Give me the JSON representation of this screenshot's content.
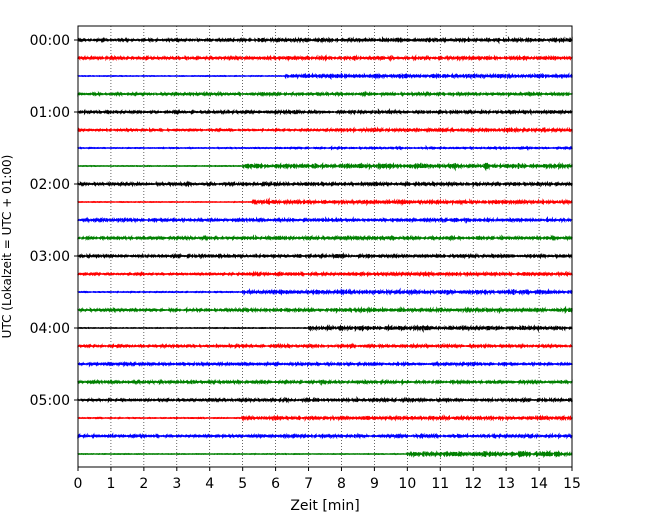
{
  "chart_data": {
    "type": "line",
    "title": "",
    "xlabel": "Zeit  [min]",
    "ylabel": "UTC (Lokalzeit = UTC + 01:00)",
    "xlim": [
      0,
      15
    ],
    "x_ticks": [
      0,
      1,
      2,
      3,
      4,
      5,
      6,
      7,
      8,
      9,
      10,
      11,
      12,
      13,
      14,
      15
    ],
    "y_tick_labels": [
      "00:00",
      "01:00",
      "02:00",
      "03:00",
      "04:00",
      "05:00"
    ],
    "grid": "vertical dotted lines at each minute",
    "trace_interval_minutes": 15,
    "color_cycle": [
      "#000000",
      "#ff0000",
      "#0000ff",
      "#008000"
    ],
    "traces": [
      {
        "utc_start": "00:00",
        "amplitude": 0.8,
        "event_start_min": 5.0,
        "event_amp": 1.6
      },
      {
        "utc_start": "00:15",
        "amplitude": 0.9,
        "event_start_min": 6.0,
        "event_amp": 1.5
      },
      {
        "utc_start": "00:30",
        "amplitude": 0.2,
        "event_start_min": 6.3,
        "event_amp": 1.7
      },
      {
        "utc_start": "00:45",
        "amplitude": 0.8,
        "event_start_min": 5.0,
        "event_amp": 1.1
      },
      {
        "utc_start": "01:00",
        "amplitude": 0.8,
        "event_start_min": 5.5,
        "event_amp": 1.2
      },
      {
        "utc_start": "01:15",
        "amplitude": 0.6,
        "event_start_min": 7.5,
        "event_amp": 1.4
      },
      {
        "utc_start": "01:30",
        "amplitude": 0.3,
        "event_start_min": 6.0,
        "event_amp": 0.6
      },
      {
        "utc_start": "01:45",
        "amplitude": 0.2,
        "event_start_min": 5.0,
        "event_amp": 2.0
      },
      {
        "utc_start": "02:00",
        "amplitude": 1.0,
        "event_start_min": 5.0,
        "event_amp": 1.3
      },
      {
        "utc_start": "02:15",
        "amplitude": 0.2,
        "event_start_min": 5.3,
        "event_amp": 1.6
      },
      {
        "utc_start": "02:30",
        "amplitude": 1.0,
        "event_start_min": 5.0,
        "event_amp": 1.3
      },
      {
        "utc_start": "02:45",
        "amplitude": 0.9,
        "event_start_min": 5.0,
        "event_amp": 1.2
      },
      {
        "utc_start": "03:00",
        "amplitude": 1.0,
        "event_start_min": 5.0,
        "event_amp": 1.3
      },
      {
        "utc_start": "03:15",
        "amplitude": 0.6,
        "event_start_min": 5.0,
        "event_amp": 1.2
      },
      {
        "utc_start": "03:30",
        "amplitude": 0.3,
        "event_start_min": 5.0,
        "event_amp": 1.8
      },
      {
        "utc_start": "03:45",
        "amplitude": 0.8,
        "event_start_min": 5.0,
        "event_amp": 1.4
      },
      {
        "utc_start": "04:00",
        "amplitude": 0.2,
        "event_start_min": 7.0,
        "event_amp": 2.0
      },
      {
        "utc_start": "04:15",
        "amplitude": 0.7,
        "event_start_min": 5.0,
        "event_amp": 1.1
      },
      {
        "utc_start": "04:30",
        "amplitude": 0.9,
        "event_start_min": 5.0,
        "event_amp": 1.0
      },
      {
        "utc_start": "04:45",
        "amplitude": 1.0,
        "event_start_min": 5.0,
        "event_amp": 1.1
      },
      {
        "utc_start": "05:00",
        "amplitude": 0.7,
        "event_start_min": 5.0,
        "event_amp": 1.2
      },
      {
        "utc_start": "05:15",
        "amplitude": 0.3,
        "event_start_min": 5.0,
        "event_amp": 1.5
      },
      {
        "utc_start": "05:30",
        "amplitude": 0.8,
        "event_start_min": 5.0,
        "event_amp": 1.1
      },
      {
        "utc_start": "05:45",
        "amplitude": 0.2,
        "event_start_min": 10.0,
        "event_amp": 2.4
      }
    ]
  }
}
